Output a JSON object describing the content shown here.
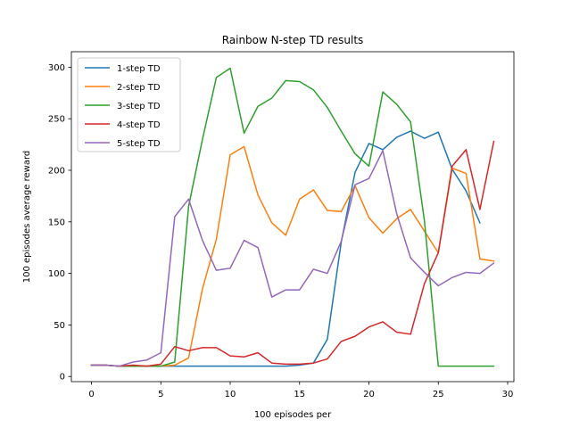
{
  "chart_data": {
    "type": "line",
    "title": "Rainbow N-step TD results",
    "xlabel": "100 episodes per",
    "ylabel": "100 episodes average reward",
    "xlim": [
      -1.45,
      30.45
    ],
    "ylim": [
      -5,
      315
    ],
    "xticks": [
      0,
      5,
      10,
      15,
      20,
      25,
      30
    ],
    "yticks": [
      0,
      50,
      100,
      150,
      200,
      250,
      300
    ],
    "legend": "top-left",
    "grid": false,
    "series": [
      {
        "name": "1-step TD",
        "color": "#1f77b4",
        "x": [
          0,
          1,
          2,
          3,
          4,
          5,
          6,
          7,
          8,
          9,
          10,
          11,
          12,
          13,
          14,
          15,
          16,
          17,
          18,
          19,
          20,
          21,
          22,
          23,
          24,
          25,
          26,
          27,
          28
        ],
        "values": [
          11,
          11,
          10,
          10,
          10,
          10,
          10,
          10,
          10,
          10,
          10,
          10,
          10,
          10,
          10,
          11,
          13,
          36,
          130,
          198,
          226,
          220,
          232,
          238,
          231,
          237,
          201,
          180,
          149
        ]
      },
      {
        "name": "2-step TD",
        "color": "#ff7f0e",
        "x": [
          0,
          1,
          2,
          3,
          4,
          5,
          6,
          7,
          8,
          9,
          10,
          11,
          12,
          13,
          14,
          15,
          16,
          17,
          18,
          19,
          20,
          21,
          22,
          23,
          24,
          25,
          26,
          27,
          28,
          29
        ],
        "values": [
          11,
          11,
          10,
          10,
          10,
          10,
          11,
          18,
          85,
          133,
          215,
          223,
          176,
          149,
          137,
          172,
          181,
          161,
          160,
          185,
          154,
          139,
          153,
          162,
          141,
          120,
          202,
          197,
          114,
          112
        ]
      },
      {
        "name": "3-step TD",
        "color": "#2ca02c",
        "x": [
          0,
          1,
          2,
          3,
          4,
          5,
          6,
          7,
          8,
          9,
          10,
          11,
          12,
          13,
          14,
          15,
          16,
          17,
          18,
          19,
          20,
          21,
          22,
          23,
          24,
          25,
          26,
          27,
          28,
          29
        ],
        "values": [
          11,
          11,
          10,
          10,
          10,
          10,
          14,
          165,
          230,
          290,
          299,
          236,
          262,
          270,
          287,
          286,
          278,
          261,
          238,
          216,
          204,
          276,
          264,
          247,
          151,
          10,
          10,
          10,
          10,
          10
        ]
      },
      {
        "name": "4-step TD",
        "color": "#d62728",
        "x": [
          0,
          1,
          2,
          3,
          4,
          5,
          6,
          7,
          8,
          9,
          10,
          11,
          12,
          13,
          14,
          15,
          16,
          17,
          18,
          19,
          20,
          21,
          22,
          23,
          24,
          25,
          26,
          27,
          28,
          29
        ],
        "values": [
          11,
          11,
          10,
          11,
          10,
          12,
          29,
          25,
          28,
          28,
          20,
          19,
          23,
          13,
          12,
          12,
          13,
          17,
          34,
          39,
          48,
          53,
          43,
          41,
          90,
          120,
          204,
          220,
          162,
          228
        ]
      },
      {
        "name": "5-step TD",
        "color": "#9467bd",
        "x": [
          0,
          1,
          2,
          3,
          4,
          5,
          6,
          7,
          8,
          9,
          10,
          11,
          12,
          13,
          14,
          15,
          16,
          17,
          18,
          19,
          20,
          21,
          22,
          23,
          24,
          25,
          26,
          27,
          28,
          29
        ],
        "values": [
          11,
          11,
          10,
          14,
          16,
          23,
          155,
          172,
          132,
          103,
          105,
          132,
          125,
          77,
          84,
          84,
          104,
          100,
          131,
          186,
          192,
          219,
          158,
          115,
          101,
          88,
          96,
          101,
          100,
          110
        ]
      }
    ]
  }
}
